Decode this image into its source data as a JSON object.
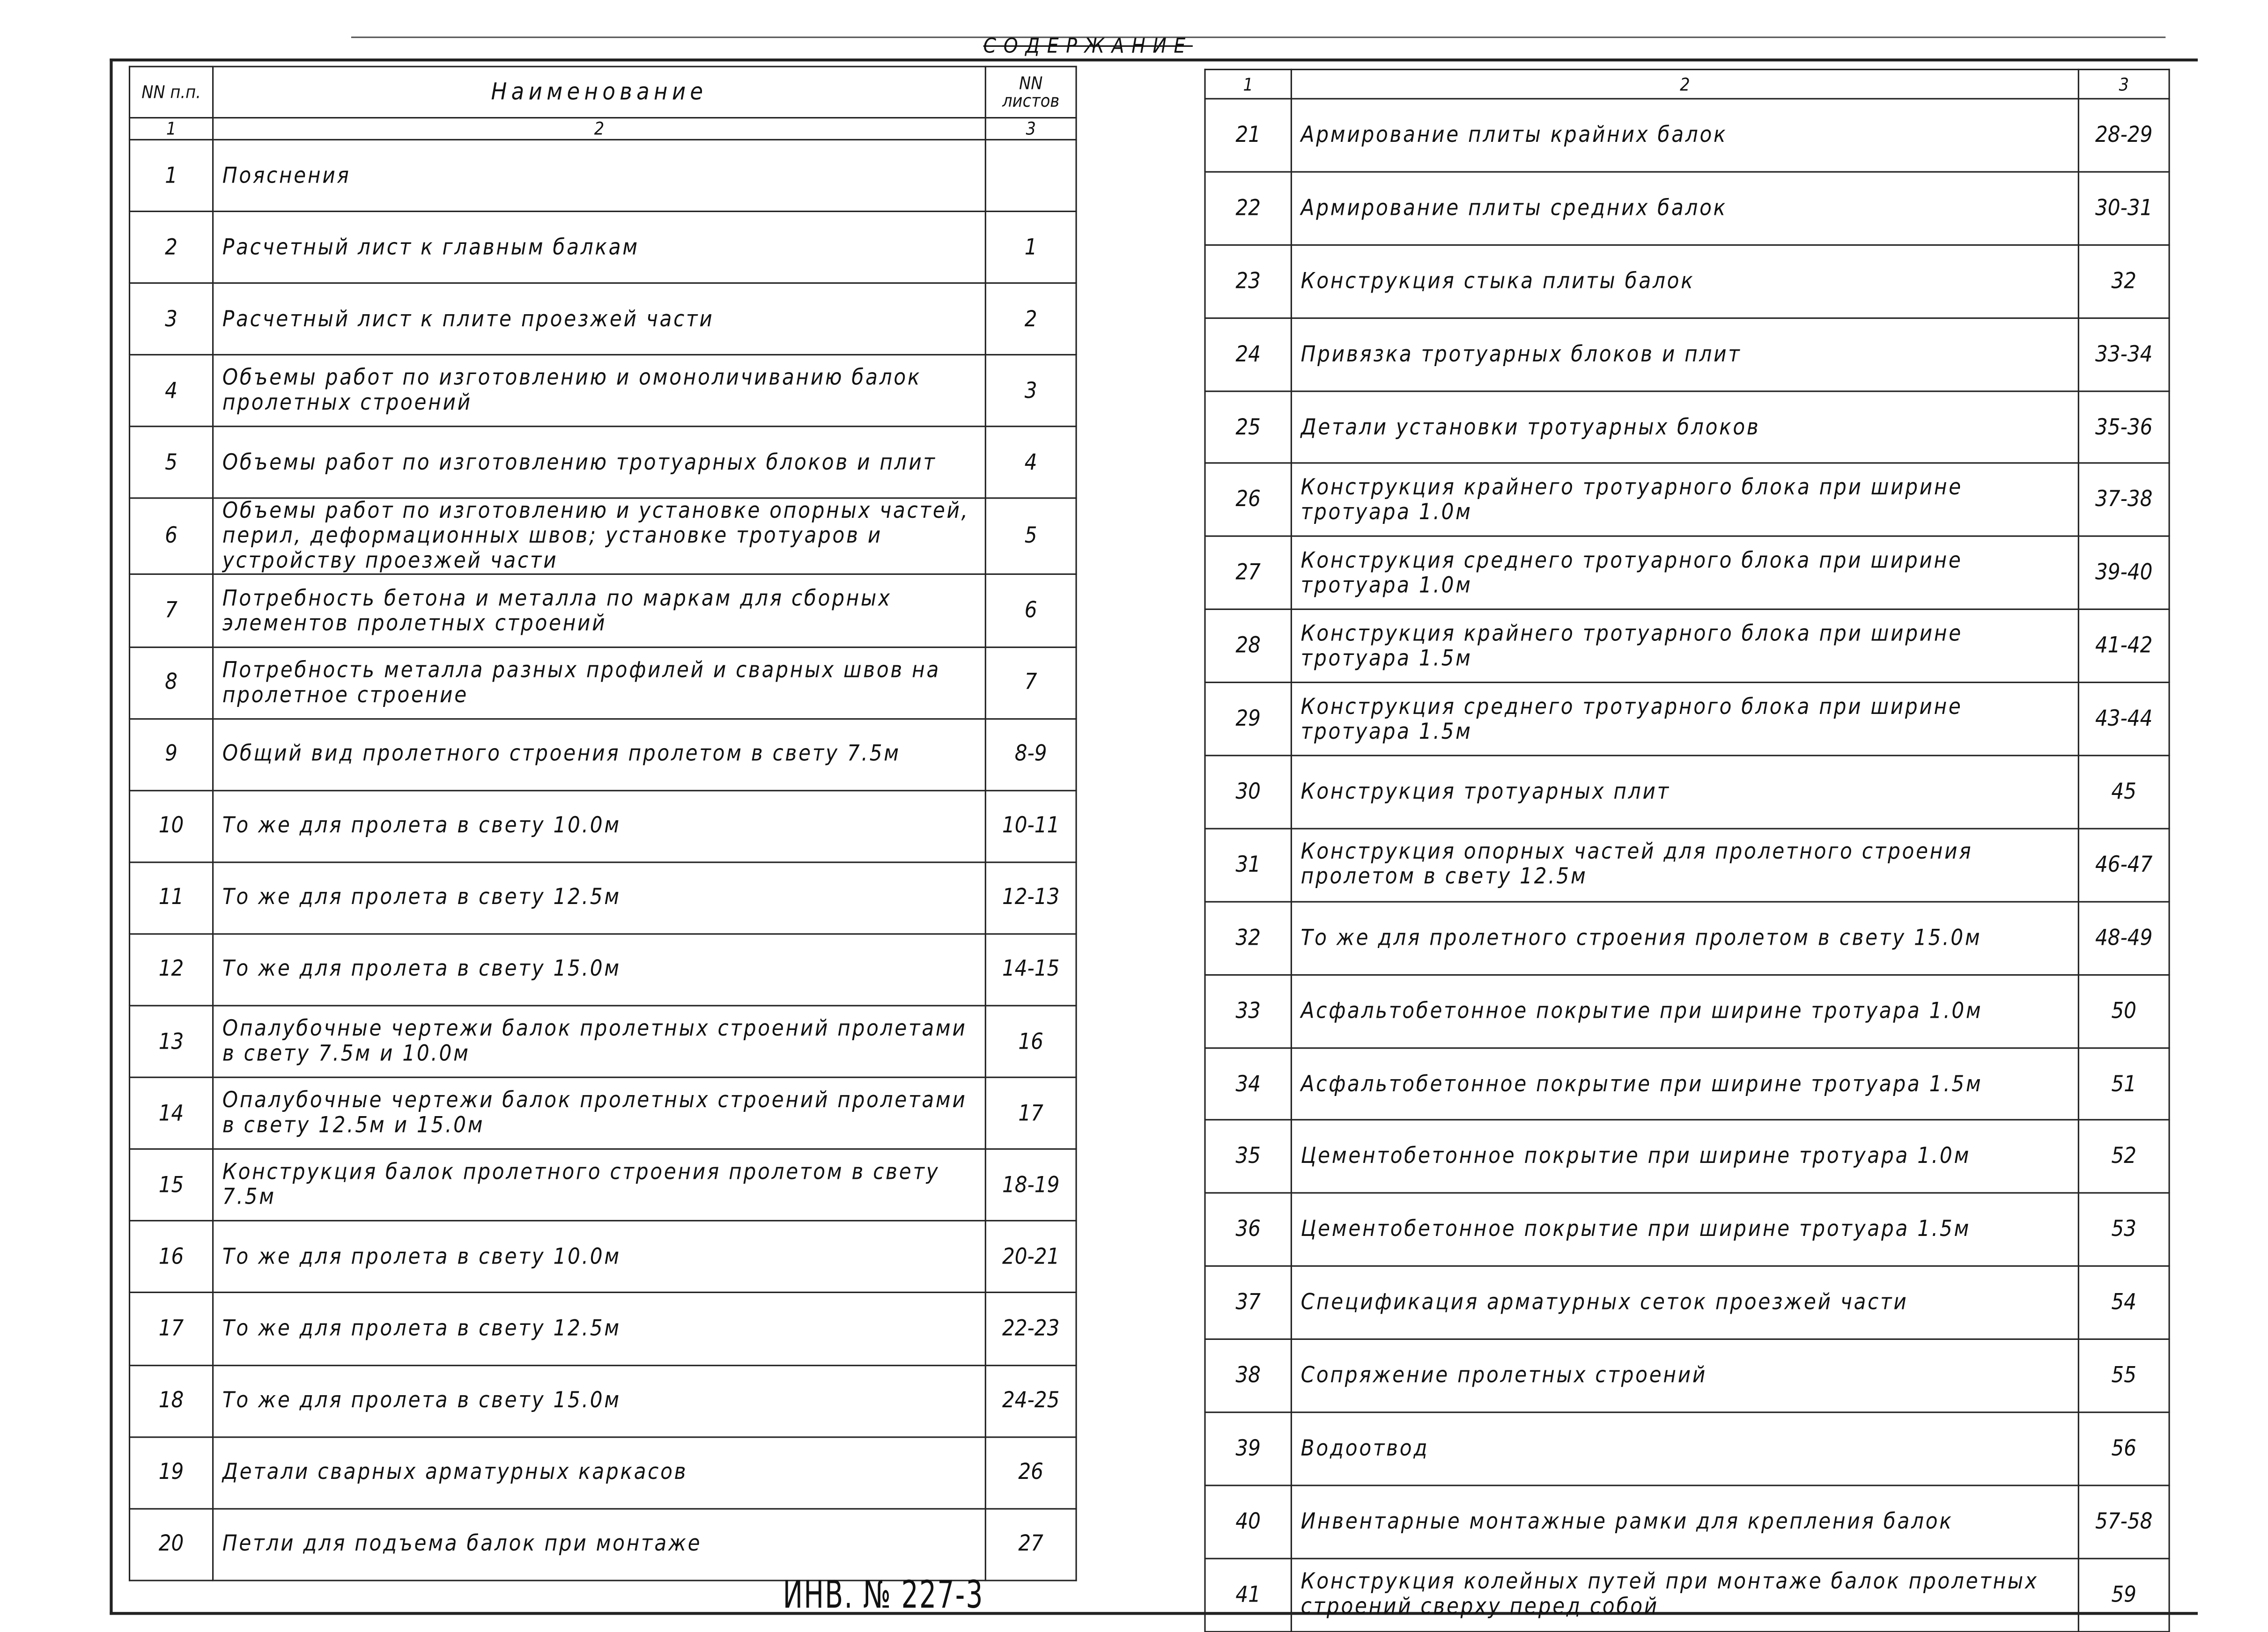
{
  "title": "СОДЕРЖАНИЕ",
  "stamp": "ИНВ. № 227-3",
  "left_table": {
    "headers": {
      "num": "NN п.п.",
      "name": "Наименование",
      "sheets": "NN листов"
    },
    "col_numbers": [
      "1",
      "2",
      "3"
    ],
    "rows": [
      {
        "n": "1",
        "name": "Пояснения",
        "sheets": ""
      },
      {
        "n": "2",
        "name": "Расчетный лист к главным балкам",
        "sheets": "1"
      },
      {
        "n": "3",
        "name": "Расчетный лист к плите проезжей части",
        "sheets": "2"
      },
      {
        "n": "4",
        "name": "Объемы работ по изготовлению и омоноличиванию балок пролетных строений",
        "sheets": "3"
      },
      {
        "n": "5",
        "name": "Объемы работ по изготовлению тротуарных блоков и плит",
        "sheets": "4"
      },
      {
        "n": "6",
        "name": "Объемы работ по изготовлению и установке опорных частей, перил, деформационных швов; установке тротуаров и устройству проезжей части",
        "sheets": "5"
      },
      {
        "n": "7",
        "name": "Потребность бетона и металла по маркам для сборных элементов пролетных строений",
        "sheets": "6"
      },
      {
        "n": "8",
        "name": "Потребность металла разных профилей и сварных швов на пролетное строение",
        "sheets": "7"
      },
      {
        "n": "9",
        "name": "Общий вид пролетного строения пролетом в свету 7.5м",
        "sheets": "8-9"
      },
      {
        "n": "10",
        "name": "То же для пролета в свету 10.0м",
        "sheets": "10-11"
      },
      {
        "n": "11",
        "name": "То же для пролета в свету 12.5м",
        "sheets": "12-13"
      },
      {
        "n": "12",
        "name": "То же для пролета в свету 15.0м",
        "sheets": "14-15"
      },
      {
        "n": "13",
        "name": "Опалубочные чертежи балок пролетных строений пролетами в свету 7.5м и 10.0м",
        "sheets": "16"
      },
      {
        "n": "14",
        "name": "Опалубочные чертежи балок пролетных строений пролетами в свету 12.5м и 15.0м",
        "sheets": "17"
      },
      {
        "n": "15",
        "name": "Конструкция балок пролетного строения пролетом в свету 7.5м",
        "sheets": "18-19"
      },
      {
        "n": "16",
        "name": "То же для пролета в свету 10.0м",
        "sheets": "20-21"
      },
      {
        "n": "17",
        "name": "То же для пролета в свету 12.5м",
        "sheets": "22-23"
      },
      {
        "n": "18",
        "name": "То же для пролета в свету 15.0м",
        "sheets": "24-25"
      },
      {
        "n": "19",
        "name": "Детали сварных арматурных каркасов",
        "sheets": "26"
      },
      {
        "n": "20",
        "name": "Петли для подъема балок при монтаже",
        "sheets": "27"
      }
    ]
  },
  "right_table": {
    "col_numbers": [
      "1",
      "2",
      "3"
    ],
    "rows": [
      {
        "n": "21",
        "name": "Армирование плиты крайних балок",
        "sheets": "28-29"
      },
      {
        "n": "22",
        "name": "Армирование плиты средних балок",
        "sheets": "30-31"
      },
      {
        "n": "23",
        "name": "Конструкция стыка плиты балок",
        "sheets": "32"
      },
      {
        "n": "24",
        "name": "Привязка тротуарных блоков и плит",
        "sheets": "33-34"
      },
      {
        "n": "25",
        "name": "Детали установки тротуарных блоков",
        "sheets": "35-36"
      },
      {
        "n": "26",
        "name": "Конструкция крайнего тротуарного блока при ширине тротуара 1.0м",
        "sheets": "37-38"
      },
      {
        "n": "27",
        "name": "Конструкция среднего тротуарного блока при ширине тротуара 1.0м",
        "sheets": "39-40"
      },
      {
        "n": "28",
        "name": "Конструкция крайнего тротуарного блока при ширине тротуара 1.5м",
        "sheets": "41-42"
      },
      {
        "n": "29",
        "name": "Конструкция среднего тротуарного блока при ширине тротуара 1.5м",
        "sheets": "43-44"
      },
      {
        "n": "30",
        "name": "Конструкция тротуарных плит",
        "sheets": "45"
      },
      {
        "n": "31",
        "name": "Конструкция опорных частей для пролетного строения пролетом в свету 12.5м",
        "sheets": "46-47"
      },
      {
        "n": "32",
        "name": "То же для пролетного строения пролетом в свету 15.0м",
        "sheets": "48-49"
      },
      {
        "n": "33",
        "name": "Асфальтобетонное покрытие при ширине тротуара 1.0м",
        "sheets": "50"
      },
      {
        "n": "34",
        "name": "Асфальтобетонное покрытие при ширине тротуара 1.5м",
        "sheets": "51"
      },
      {
        "n": "35",
        "name": "Цементобетонное покрытие при ширине тротуара 1.0м",
        "sheets": "52"
      },
      {
        "n": "36",
        "name": "Цементобетонное покрытие при ширине тротуара 1.5м",
        "sheets": "53"
      },
      {
        "n": "37",
        "name": "Спецификация арматурных сеток проезжей части",
        "sheets": "54"
      },
      {
        "n": "38",
        "name": "Сопряжение пролетных строений",
        "sheets": "55"
      },
      {
        "n": "39",
        "name": "Водоотвод",
        "sheets": "56"
      },
      {
        "n": "40",
        "name": "Инвентарные монтажные рамки для крепления балок",
        "sheets": "57-58"
      },
      {
        "n": "41",
        "name": "Конструкция колейных путей при монтаже балок пролетных строений сверху перед собой",
        "sheets": "59"
      }
    ]
  }
}
